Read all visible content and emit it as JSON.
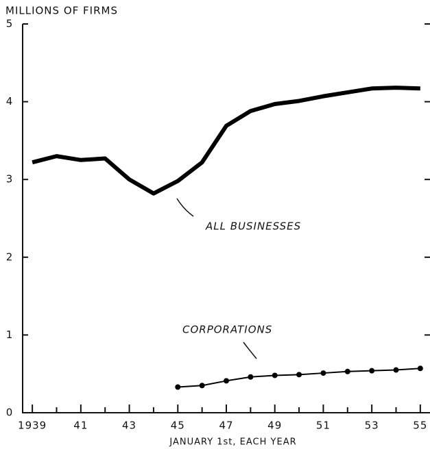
{
  "chart_data": {
    "type": "line",
    "title": "MILLIONS OF FIRMS",
    "xlabel": "JANUARY 1st, EACH YEAR",
    "x": [
      1939,
      1940,
      1941,
      1942,
      1943,
      1944,
      1945,
      1946,
      1947,
      1948,
      1949,
      1950,
      1951,
      1952,
      1953,
      1954,
      1955
    ],
    "series": [
      {
        "name": "ALL BUSINESSES",
        "color": "#000000",
        "markers": false,
        "values": [
          3.22,
          3.3,
          3.25,
          3.27,
          3.0,
          2.82,
          2.98,
          3.22,
          3.69,
          3.88,
          3.97,
          4.01,
          4.07,
          4.12,
          4.17,
          4.18,
          4.17
        ]
      },
      {
        "name": "CORPORATIONS",
        "color": "#000000",
        "markers": true,
        "values": [
          null,
          null,
          null,
          null,
          null,
          null,
          0.33,
          0.35,
          0.41,
          0.46,
          0.48,
          0.49,
          0.51,
          0.53,
          0.54,
          0.55,
          0.57
        ]
      }
    ],
    "xlim": [
      1938.6,
      1955.4
    ],
    "xticks": [
      {
        "value": 1939,
        "label": "1939"
      },
      {
        "value": 1941,
        "label": "41"
      },
      {
        "value": 1943,
        "label": "43"
      },
      {
        "value": 1945,
        "label": "45"
      },
      {
        "value": 1947,
        "label": "47"
      },
      {
        "value": 1949,
        "label": "49"
      },
      {
        "value": 1951,
        "label": "51"
      },
      {
        "value": 1953,
        "label": "53"
      },
      {
        "value": 1955,
        "label": "55"
      }
    ],
    "xminor_ticks": [
      1940,
      1942,
      1944,
      1946,
      1948,
      1950,
      1952,
      1954
    ],
    "ylim": [
      0,
      5
    ],
    "yticks": [
      0,
      1,
      2,
      3,
      4,
      5
    ],
    "grid": false
  }
}
